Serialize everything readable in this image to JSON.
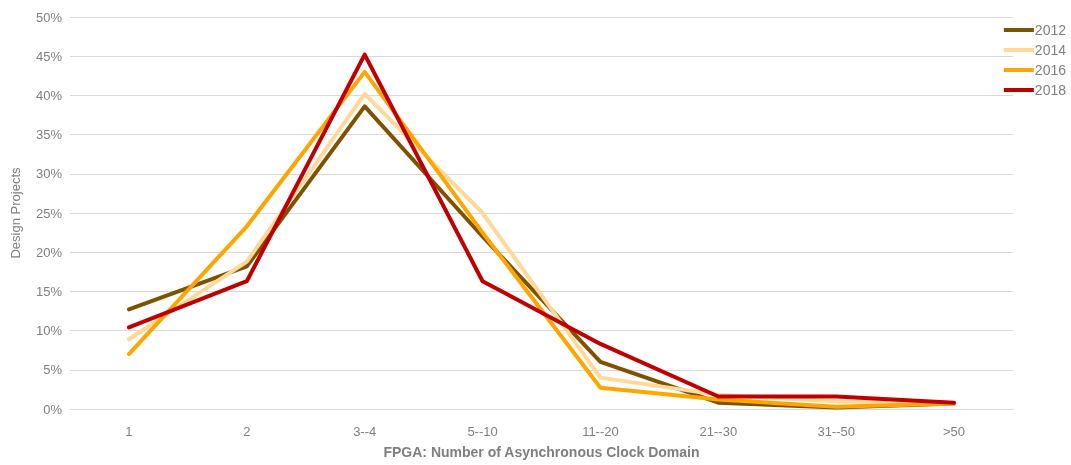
{
  "chart_data": {
    "type": "line",
    "xlabel": "FPGA: Number of Asynchronous Clock Domain",
    "ylabel": "Design Projects",
    "categories": [
      "1",
      "2",
      "3--4",
      "5--10",
      "11--20",
      "21--30",
      "31--50",
      ">50"
    ],
    "series": [
      {
        "name": "2012",
        "color": "#7f5200",
        "values": [
          12.7,
          18.2,
          38.6,
          22,
          6,
          0.8,
          0.2,
          0.7
        ]
      },
      {
        "name": "2014",
        "color": "#ffd999",
        "values": [
          8.9,
          18.8,
          40.2,
          25,
          4,
          1.8,
          1,
          0.7
        ]
      },
      {
        "name": "2016",
        "color": "#ffa500",
        "values": [
          7,
          23.3,
          43,
          22.5,
          2.7,
          1.2,
          0.3,
          0.7
        ]
      },
      {
        "name": "2018",
        "color": "#c00000",
        "values": [
          10.4,
          16.3,
          45.2,
          16.3,
          8.3,
          1.6,
          1.6,
          0.8
        ]
      }
    ],
    "ylim": [
      0,
      50
    ],
    "yticks": [
      {
        "value": 0,
        "label": "0%"
      },
      {
        "value": 5,
        "label": "5%"
      },
      {
        "value": 10,
        "label": "10%"
      },
      {
        "value": 15,
        "label": "15%"
      },
      {
        "value": 20,
        "label": "20%"
      },
      {
        "value": 25,
        "label": "25%"
      },
      {
        "value": 30,
        "label": "30%"
      },
      {
        "value": 35,
        "label": "35%"
      },
      {
        "value": 40,
        "label": "40%"
      },
      {
        "value": 45,
        "label": "45%"
      },
      {
        "value": 50,
        "label": "50%"
      }
    ],
    "grid": "y",
    "legend": "top right",
    "marker": "none",
    "line_style": "solid"
  }
}
